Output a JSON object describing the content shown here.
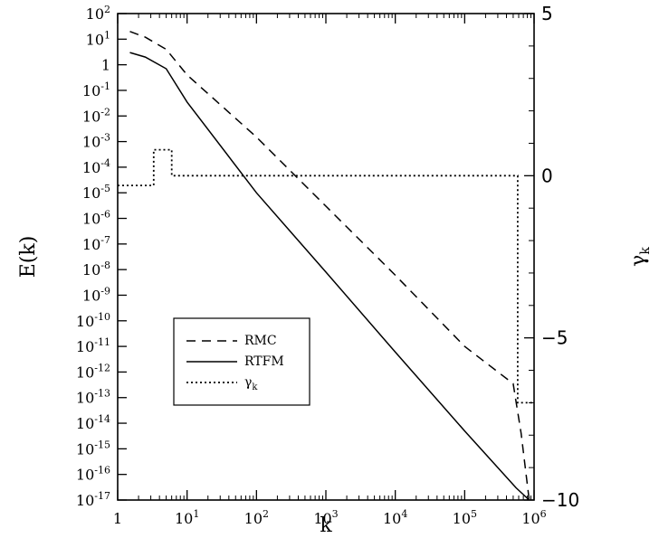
{
  "chart_data": {
    "type": "line",
    "xlabel": "k",
    "ylabel": "E(k)",
    "y2label": "γk",
    "x_scale": "log",
    "y_scale": "log",
    "xlim": [
      1,
      1000000
    ],
    "ylim": [
      1e-17,
      100
    ],
    "y2lim": [
      -10,
      5
    ],
    "x_ticks": [
      {
        "base": "1",
        "exp": ""
      },
      {
        "base": "10",
        "exp": "1"
      },
      {
        "base": "10",
        "exp": "2"
      },
      {
        "base": "10",
        "exp": "3"
      },
      {
        "base": "10",
        "exp": "4"
      },
      {
        "base": "10",
        "exp": "5"
      },
      {
        "base": "10",
        "exp": "6"
      }
    ],
    "y_ticks": [
      {
        "base": "10",
        "exp": "2"
      },
      {
        "base": "10",
        "exp": "1"
      },
      {
        "base": "1",
        "exp": ""
      },
      {
        "base": "10",
        "exp": "-1"
      },
      {
        "base": "10",
        "exp": "-2"
      },
      {
        "base": "10",
        "exp": "-3"
      },
      {
        "base": "10",
        "exp": "-4"
      },
      {
        "base": "10",
        "exp": "-5"
      },
      {
        "base": "10",
        "exp": "-6"
      },
      {
        "base": "10",
        "exp": "-7"
      },
      {
        "base": "10",
        "exp": "-8"
      },
      {
        "base": "10",
        "exp": "-9"
      },
      {
        "base": "10",
        "exp": "-10"
      },
      {
        "base": "10",
        "exp": "-11"
      },
      {
        "base": "10",
        "exp": "-12"
      },
      {
        "base": "10",
        "exp": "-13"
      },
      {
        "base": "10",
        "exp": "-14"
      },
      {
        "base": "10",
        "exp": "-15"
      },
      {
        "base": "10",
        "exp": "-16"
      },
      {
        "base": "10",
        "exp": "-17"
      }
    ],
    "y2_ticks": [
      "5",
      "0",
      "−5",
      "−10"
    ],
    "legend": {
      "placement": "lower-left",
      "entries": [
        {
          "label": "RMC",
          "style": "dashed"
        },
        {
          "label": "RTFM",
          "style": "solid"
        },
        {
          "label": "γk",
          "style": "dotted"
        }
      ]
    },
    "series": [
      {
        "name": "RMC",
        "axis": "left",
        "style": "dashed",
        "points": [
          [
            1.5,
            20
          ],
          [
            2.5,
            12
          ],
          [
            5,
            4
          ],
          [
            10,
            0.4
          ],
          [
            100,
            0.0015
          ],
          [
            1000,
            3e-06
          ],
          [
            10000,
            6e-09
          ],
          [
            100000,
            1e-11
          ],
          [
            500000,
            3.5e-13
          ],
          [
            650000,
            4e-15
          ],
          [
            850000,
            1e-17
          ]
        ]
      },
      {
        "name": "RTFM",
        "axis": "left",
        "style": "solid",
        "points": [
          [
            1.5,
            3
          ],
          [
            2.5,
            2
          ],
          [
            5,
            0.7
          ],
          [
            10,
            0.035
          ],
          [
            100,
            1e-05
          ],
          [
            1000,
            8e-09
          ],
          [
            10000,
            6e-12
          ],
          [
            100000,
            5e-15
          ],
          [
            550000,
            3e-17
          ],
          [
            850000,
            1e-17
          ]
        ]
      },
      {
        "name": "γk",
        "axis": "right",
        "style": "dotted",
        "points": [
          [
            1,
            -0.3
          ],
          [
            3.3,
            -0.3
          ],
          [
            3.3,
            0.8
          ],
          [
            6,
            0.8
          ],
          [
            6,
            0
          ],
          [
            580000,
            0
          ],
          [
            580000,
            -7
          ],
          [
            1000000,
            -7
          ]
        ]
      }
    ]
  }
}
